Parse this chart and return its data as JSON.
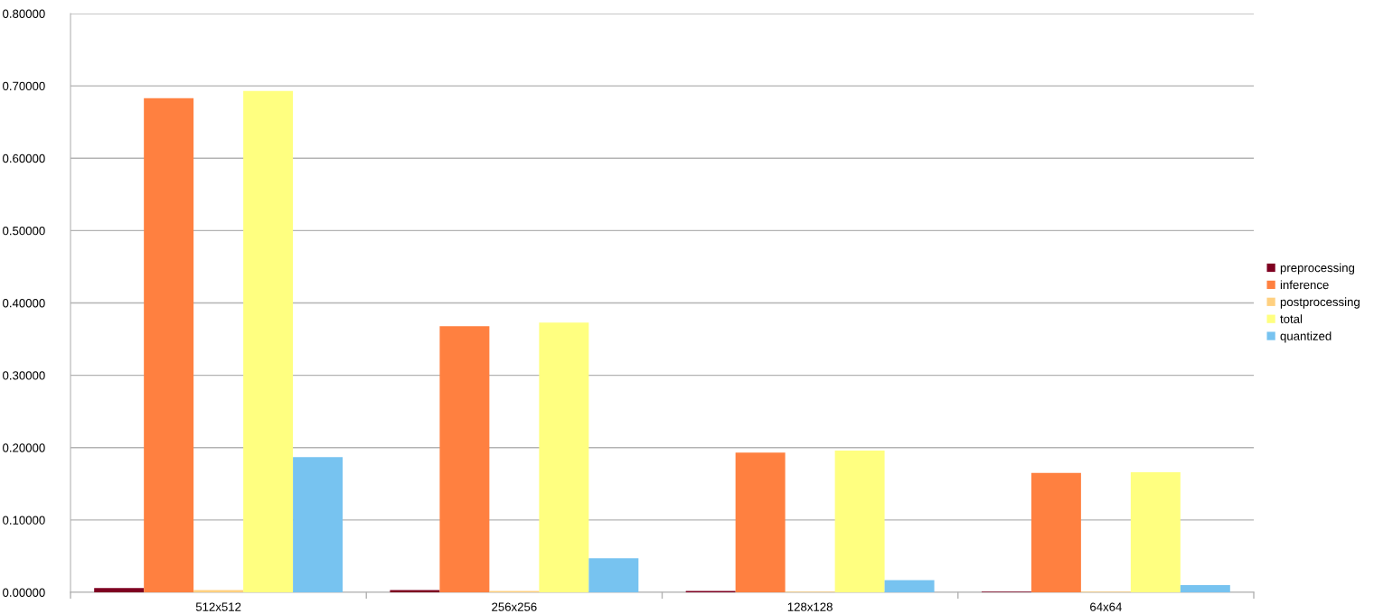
{
  "chart_data": {
    "type": "bar",
    "categories": [
      "512x512",
      "256x256",
      "128x128",
      "64x64"
    ],
    "series": [
      {
        "name": "preprocessing",
        "color": "#7e0021",
        "values": [
          0.006,
          0.003,
          0.002,
          0.001
        ]
      },
      {
        "name": "inference",
        "color": "#ff8040",
        "values": [
          0.683,
          0.368,
          0.193,
          0.165
        ]
      },
      {
        "name": "postprocessing",
        "color": "#ffd080",
        "values": [
          0.003,
          0.002,
          0.001,
          0.001
        ]
      },
      {
        "name": "total",
        "color": "#ffff80",
        "values": [
          0.693,
          0.373,
          0.196,
          0.166
        ]
      },
      {
        "name": "quantized",
        "color": "#77c3f0",
        "values": [
          0.187,
          0.047,
          0.017,
          0.01
        ]
      }
    ],
    "ylim": [
      0,
      0.8
    ],
    "yticks": [
      {
        "value": 0,
        "label": "0.00000"
      },
      {
        "value": 0.1,
        "label": "0.10000"
      },
      {
        "value": 0.2,
        "label": "0.20000"
      },
      {
        "value": 0.3,
        "label": "0.30000"
      },
      {
        "value": 0.4,
        "label": "0.40000"
      },
      {
        "value": 0.5,
        "label": "0.50000"
      },
      {
        "value": 0.6,
        "label": "0.60000"
      },
      {
        "value": 0.7,
        "label": "0.70000"
      },
      {
        "value": 0.8,
        "label": "0.80000"
      }
    ],
    "grid": "y",
    "legend": "right"
  }
}
